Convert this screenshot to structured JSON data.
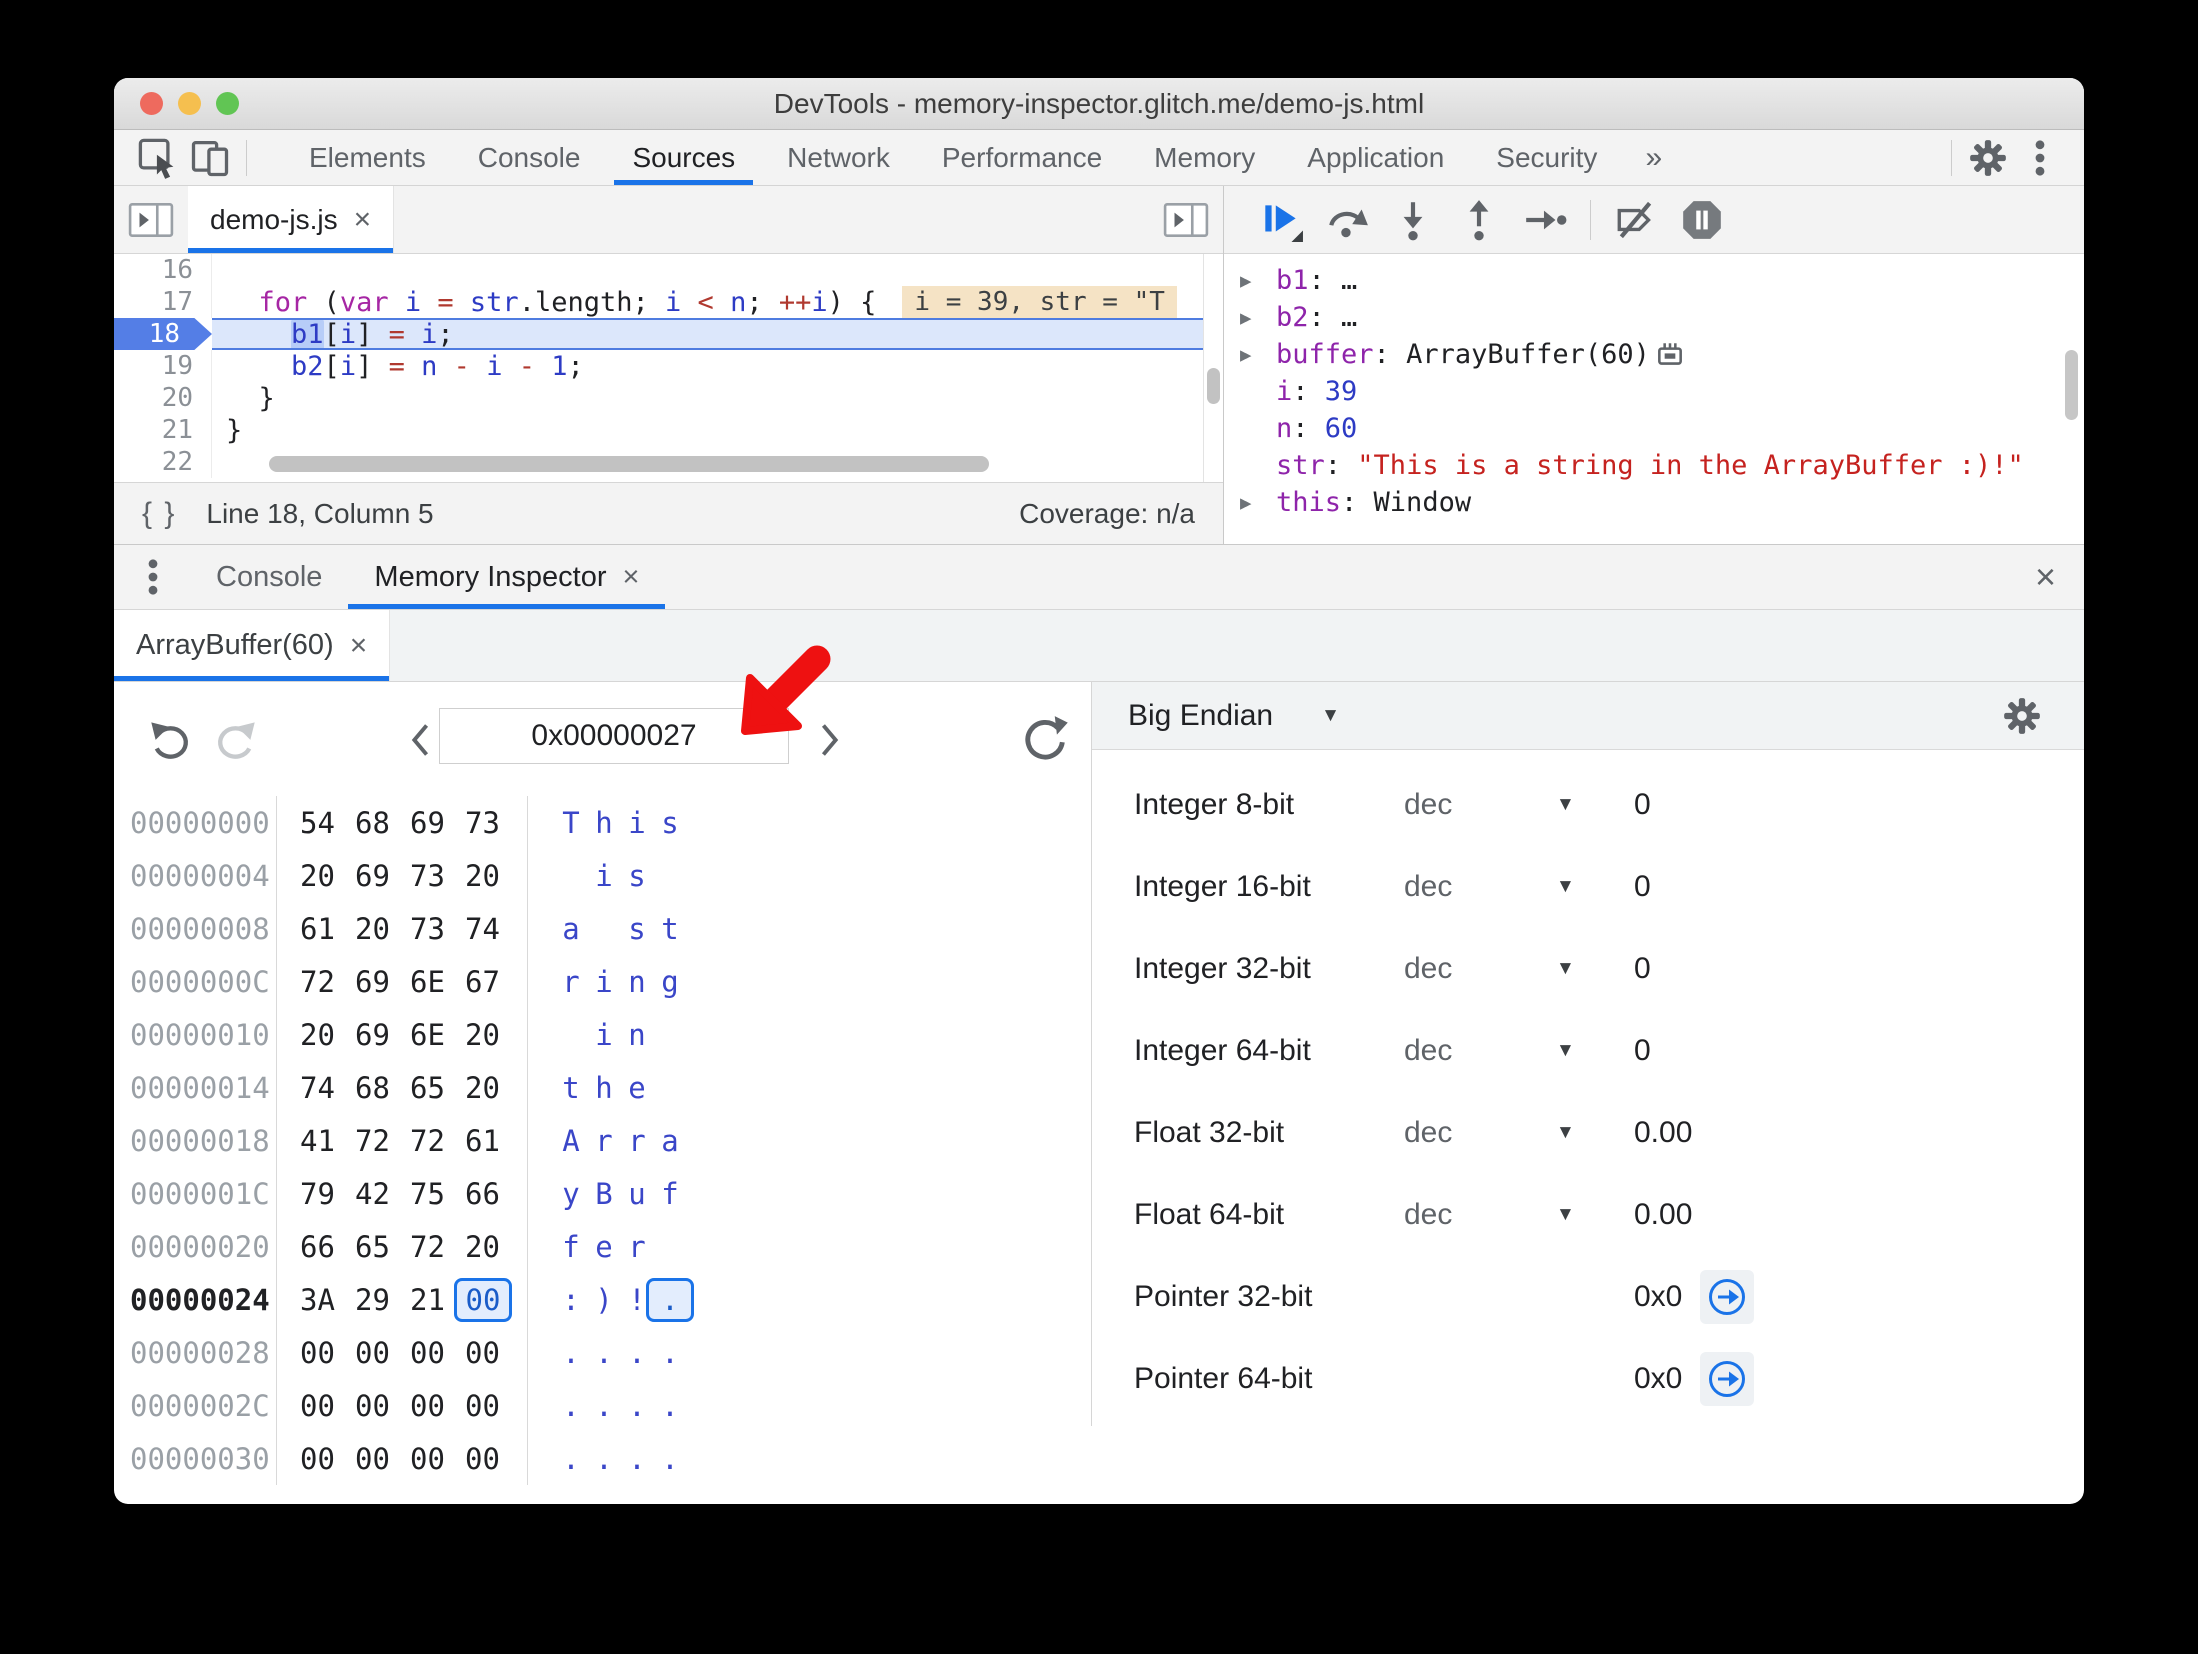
{
  "window": {
    "title": "DevTools - memory-inspector.glitch.me/demo-js.html"
  },
  "colors": {
    "accent": "#1a73e8",
    "exec_line_bg": "#dce7fb",
    "exec_line_border": "#4f7ce0",
    "annotation_bg": "#f5e3c5",
    "keyword": "#a626a4",
    "variable": "#2d3bc4",
    "operator": "#b0392f",
    "string_red": "#c5221f",
    "property_purple": "#8e24aa",
    "ascii_blue": "#3a46c8",
    "selected_byte_bg": "#e3edfd",
    "red_arrow": "#ee1111"
  },
  "toolbar": {
    "icons": [
      "inspect-icon",
      "device-toolbar-icon",
      "settings-gear-icon",
      "kebab-menu-icon"
    ],
    "tabs": [
      {
        "label": "Elements"
      },
      {
        "label": "Console"
      },
      {
        "label": "Sources"
      },
      {
        "label": "Network"
      },
      {
        "label": "Performance"
      },
      {
        "label": "Memory"
      },
      {
        "label": "Application"
      },
      {
        "label": "Security"
      }
    ],
    "active_tab": "Sources",
    "more_tabs_symbol": "»"
  },
  "sources": {
    "file_tab": {
      "label": "demo-js.js",
      "close_symbol": "×"
    },
    "editor": {
      "lines": [
        {
          "number": "16",
          "tokens": []
        },
        {
          "number": "17",
          "tokens": [
            {
              "t": "  ",
              "c": "p"
            },
            {
              "t": "for",
              "c": "k"
            },
            {
              "t": " (",
              "c": "p"
            },
            {
              "t": "var",
              "c": "k"
            },
            {
              "t": " ",
              "c": "p"
            },
            {
              "t": "i",
              "c": "v"
            },
            {
              "t": " ",
              "c": "p"
            },
            {
              "t": "=",
              "c": "o"
            },
            {
              "t": " ",
              "c": "p"
            },
            {
              "t": "str",
              "c": "v"
            },
            {
              "t": ".length",
              "c": "p"
            },
            {
              "t": "; ",
              "c": "p"
            },
            {
              "t": "i",
              "c": "v"
            },
            {
              "t": " ",
              "c": "p"
            },
            {
              "t": "<",
              "c": "o"
            },
            {
              "t": " ",
              "c": "p"
            },
            {
              "t": "n",
              "c": "v"
            },
            {
              "t": "; ",
              "c": "p"
            },
            {
              "t": "++",
              "c": "o"
            },
            {
              "t": "i",
              "c": "v"
            },
            {
              "t": ") {",
              "c": "p"
            }
          ],
          "annotation": "i = 39, str = \"T"
        },
        {
          "number": "18",
          "current": true,
          "tokens": [
            {
              "t": "    ",
              "c": "p"
            },
            {
              "t": "b1",
              "c": "v hl"
            },
            {
              "t": "[",
              "c": "p"
            },
            {
              "t": "i",
              "c": "v"
            },
            {
              "t": "] ",
              "c": "p"
            },
            {
              "t": "=",
              "c": "o"
            },
            {
              "t": " ",
              "c": "p"
            },
            {
              "t": "i",
              "c": "v"
            },
            {
              "t": ";",
              "c": "p"
            }
          ]
        },
        {
          "number": "19",
          "tokens": [
            {
              "t": "    ",
              "c": "p"
            },
            {
              "t": "b2",
              "c": "v"
            },
            {
              "t": "[",
              "c": "p"
            },
            {
              "t": "i",
              "c": "v"
            },
            {
              "t": "] ",
              "c": "p"
            },
            {
              "t": "=",
              "c": "o"
            },
            {
              "t": " ",
              "c": "p"
            },
            {
              "t": "n",
              "c": "v"
            },
            {
              "t": " ",
              "c": "p"
            },
            {
              "t": "-",
              "c": "o"
            },
            {
              "t": " ",
              "c": "p"
            },
            {
              "t": "i",
              "c": "v"
            },
            {
              "t": " ",
              "c": "p"
            },
            {
              "t": "-",
              "c": "o"
            },
            {
              "t": " ",
              "c": "p"
            },
            {
              "t": "1",
              "c": "n"
            },
            {
              "t": ";",
              "c": "p"
            }
          ]
        },
        {
          "number": "20",
          "tokens": [
            {
              "t": "  }",
              "c": "p"
            }
          ]
        },
        {
          "number": "21",
          "tokens": [
            {
              "t": "}",
              "c": "p"
            }
          ]
        },
        {
          "number": "22",
          "tokens": []
        }
      ]
    },
    "status_bar": {
      "pretty_print_symbol": "{ }",
      "line_info": "Line 18, Column 5",
      "coverage": "Coverage: n/a"
    }
  },
  "debugger": {
    "toolbar_icons": [
      "resume-icon",
      "step-over-icon",
      "step-into-icon",
      "step-out-icon",
      "step-icon",
      "deactivate-breakpoints-icon",
      "pause-on-exceptions-icon"
    ],
    "scope": [
      {
        "name": "b1",
        "value": "…",
        "type": "plain",
        "expandable": true
      },
      {
        "name": "b2",
        "value": "…",
        "type": "plain",
        "expandable": true
      },
      {
        "name": "buffer",
        "value": "ArrayBuffer(60)",
        "type": "plain",
        "expandable": true,
        "memory_icon": true
      },
      {
        "name": "i",
        "value": "39",
        "type": "number"
      },
      {
        "name": "n",
        "value": "60",
        "type": "number"
      },
      {
        "name": "str",
        "value": "\"This is a string in the ArrayBuffer :)!\"",
        "type": "string"
      },
      {
        "name": "this",
        "value": "Window",
        "type": "plain",
        "expandable": true
      }
    ]
  },
  "drawer": {
    "menu_icon": "kebab-menu-icon",
    "tabs": [
      {
        "label": "Console"
      },
      {
        "label": "Memory Inspector",
        "close_symbol": "×"
      }
    ],
    "active_tab": "Memory Inspector",
    "close_symbol": "×"
  },
  "memory_inspector": {
    "buffer_tab": {
      "label": "ArrayBuffer(60)",
      "close_symbol": "×"
    },
    "navigation": {
      "address": "0x00000027",
      "icons": [
        "undo-icon",
        "redo-icon",
        "prev-page-icon",
        "next-page-icon",
        "refresh-icon"
      ]
    },
    "hex_dump": {
      "selected": {
        "row": 9,
        "byte": 3
      },
      "rows": [
        {
          "addr": "00000000",
          "bytes": [
            "54",
            "68",
            "69",
            "73"
          ],
          "ascii": [
            "T",
            "h",
            "i",
            "s"
          ]
        },
        {
          "addr": "00000004",
          "bytes": [
            "20",
            "69",
            "73",
            "20"
          ],
          "ascii": [
            "",
            "i",
            "s",
            ""
          ]
        },
        {
          "addr": "00000008",
          "bytes": [
            "61",
            "20",
            "73",
            "74"
          ],
          "ascii": [
            "a",
            "",
            "s",
            "t"
          ]
        },
        {
          "addr": "0000000C",
          "bytes": [
            "72",
            "69",
            "6E",
            "67"
          ],
          "ascii": [
            "r",
            "i",
            "n",
            "g"
          ]
        },
        {
          "addr": "00000010",
          "bytes": [
            "20",
            "69",
            "6E",
            "20"
          ],
          "ascii": [
            "",
            "i",
            "n",
            ""
          ]
        },
        {
          "addr": "00000014",
          "bytes": [
            "74",
            "68",
            "65",
            "20"
          ],
          "ascii": [
            "t",
            "h",
            "e",
            ""
          ]
        },
        {
          "addr": "00000018",
          "bytes": [
            "41",
            "72",
            "72",
            "61"
          ],
          "ascii": [
            "A",
            "r",
            "r",
            "a"
          ]
        },
        {
          "addr": "0000001C",
          "bytes": [
            "79",
            "42",
            "75",
            "66"
          ],
          "ascii": [
            "y",
            "B",
            "u",
            "f"
          ]
        },
        {
          "addr": "00000020",
          "bytes": [
            "66",
            "65",
            "72",
            "20"
          ],
          "ascii": [
            "f",
            "e",
            "r",
            ""
          ]
        },
        {
          "addr": "00000024",
          "bytes": [
            "3A",
            "29",
            "21",
            "00"
          ],
          "ascii": [
            ":",
            ")",
            "!",
            "."
          ],
          "bold": true
        },
        {
          "addr": "00000028",
          "bytes": [
            "00",
            "00",
            "00",
            "00"
          ],
          "ascii": [
            ".",
            ".",
            ".",
            "."
          ]
        },
        {
          "addr": "0000002C",
          "bytes": [
            "00",
            "00",
            "00",
            "00"
          ],
          "ascii": [
            ".",
            ".",
            ".",
            "."
          ]
        },
        {
          "addr": "00000030",
          "bytes": [
            "00",
            "00",
            "00",
            "00"
          ],
          "ascii": [
            ".",
            ".",
            ".",
            "."
          ]
        }
      ]
    },
    "value_interpretation": {
      "endianness": "Big Endian",
      "settings_icon": "settings-gear-icon",
      "rows": [
        {
          "label": "Integer 8-bit",
          "mode": "dec",
          "value": "0"
        },
        {
          "label": "Integer 16-bit",
          "mode": "dec",
          "value": "0"
        },
        {
          "label": "Integer 32-bit",
          "mode": "dec",
          "value": "0"
        },
        {
          "label": "Integer 64-bit",
          "mode": "dec",
          "value": "0"
        },
        {
          "label": "Float 32-bit",
          "mode": "dec",
          "value": "0.00"
        },
        {
          "label": "Float 64-bit",
          "mode": "dec",
          "value": "0.00"
        },
        {
          "label": "Pointer 32-bit",
          "value": "0x0",
          "jump_icon": true
        },
        {
          "label": "Pointer 64-bit",
          "value": "0x0",
          "jump_icon": true
        }
      ]
    }
  }
}
